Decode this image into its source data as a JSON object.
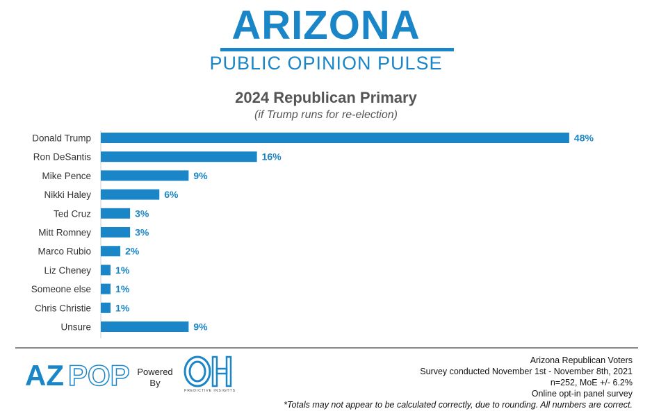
{
  "header": {
    "brand_title": "ARIZONA",
    "brand_subtitle": "PUBLIC OPINION PULSE",
    "brand_color": "#1a86c7"
  },
  "chart_data": {
    "type": "bar",
    "orientation": "horizontal",
    "title": "2024 Republican Primary",
    "subtitle": "(if Trump runs for re-election)",
    "categories": [
      "Donald Trump",
      "Ron DeSantis",
      "Mike Pence",
      "Nikki Haley",
      "Ted Cruz",
      "Mitt Romney",
      "Marco Rubio",
      "Liz Cheney",
      "Someone else",
      "Chris Christie",
      "Unsure"
    ],
    "values": [
      48,
      16,
      9,
      6,
      3,
      3,
      2,
      1,
      1,
      1,
      9
    ],
    "value_suffix": "%",
    "bar_color": "#1a86c7",
    "grid": false,
    "legend": "none"
  },
  "footer": {
    "logo_text": "AZPOP",
    "powered_by": [
      "Powered",
      "By"
    ],
    "partner_logo": "OH",
    "partner_name": "PREDICTIVE INSIGHTS",
    "notes": [
      "Arizona Republican Voters",
      "Survey conducted November 1st - November 8th, 2021",
      "n=252, MoE +/- 6.2%",
      "Online opt-in panel survey"
    ],
    "footnote": "*Totals may not appear to be calculated correctly, due to rounding. All numbers are correct."
  }
}
